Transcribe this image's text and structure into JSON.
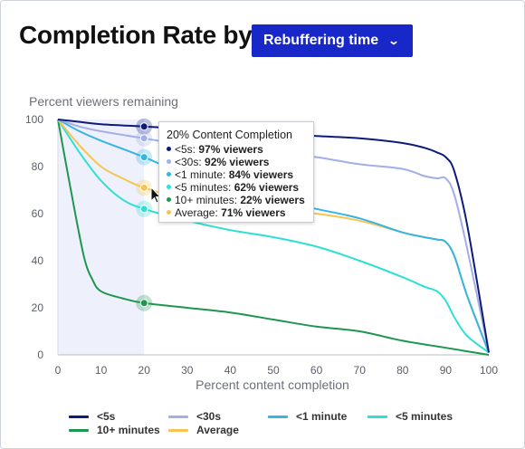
{
  "header": {
    "title": "Completion Rate by",
    "dropdown_label": "Rebuffering time"
  },
  "colors": {
    "s5": "#0d1b7a",
    "s30": "#a3aee6",
    "m1": "#36b4e3",
    "m5": "#2ee0d4",
    "m10": "#1f9650",
    "avg": "#f5c554",
    "highlight": "#eef0fb"
  },
  "chart_data": {
    "type": "line",
    "ylabel": "Percent viewers remaining",
    "xlabel": "Percent content completion",
    "xlim": [
      0,
      100
    ],
    "ylim": [
      0,
      100
    ],
    "xticks": [
      0,
      10,
      20,
      30,
      40,
      50,
      60,
      70,
      80,
      90,
      100
    ],
    "yticks": [
      0,
      20,
      40,
      60,
      80,
      100
    ],
    "highlight_range": [
      0,
      20
    ],
    "series": [
      {
        "name": "<5s",
        "key": "s5",
        "x": [
          0,
          5,
          10,
          20,
          30,
          40,
          50,
          60,
          70,
          80,
          85,
          88,
          90,
          92,
          95,
          100
        ],
        "y": [
          100,
          99,
          98,
          97,
          96,
          95,
          94,
          93,
          92,
          90,
          88,
          86,
          84,
          78,
          55,
          1
        ]
      },
      {
        "name": "<30s",
        "key": "s30",
        "x": [
          0,
          5,
          10,
          20,
          30,
          40,
          50,
          60,
          70,
          80,
          85,
          88,
          90,
          92,
          95,
          100
        ],
        "y": [
          100,
          97,
          95,
          92,
          89,
          87,
          86,
          84,
          81,
          79,
          76,
          75,
          75,
          68,
          45,
          1
        ]
      },
      {
        "name": "<1 minute",
        "key": "m1",
        "x": [
          0,
          5,
          10,
          20,
          30,
          40,
          50,
          60,
          70,
          80,
          85,
          88,
          90,
          92,
          95,
          100
        ],
        "y": [
          100,
          95,
          91,
          84,
          76,
          70,
          66,
          62,
          58,
          52,
          50,
          49,
          48,
          42,
          25,
          1
        ]
      },
      {
        "name": "<5 minutes",
        "key": "m5",
        "x": [
          0,
          5,
          10,
          15,
          20,
          30,
          40,
          50,
          60,
          70,
          80,
          85,
          88,
          90,
          92,
          95,
          100
        ],
        "y": [
          100,
          86,
          74,
          66,
          62,
          57,
          53,
          50,
          46,
          40,
          33,
          29,
          27,
          23,
          16,
          8,
          1
        ]
      },
      {
        "name": "10+ minutes",
        "key": "m10",
        "x": [
          0,
          3,
          6,
          8,
          10,
          15,
          20,
          30,
          40,
          50,
          60,
          70,
          80,
          90,
          100
        ],
        "y": [
          100,
          70,
          42,
          32,
          27,
          24,
          22,
          20,
          18,
          15,
          12,
          10,
          6,
          3,
          0
        ]
      },
      {
        "name": "Average",
        "key": "avg",
        "x": [
          0,
          5,
          10,
          15,
          20,
          30,
          40,
          50,
          60,
          70,
          80,
          85,
          88,
          90,
          92,
          95,
          100
        ],
        "y": [
          100,
          89,
          80,
          75,
          71,
          66,
          64,
          62,
          60,
          57,
          52,
          50,
          49,
          48,
          42,
          25,
          1
        ]
      }
    ],
    "tooltip": {
      "title": "20% Content Completion",
      "x": 20,
      "items": [
        {
          "key": "s5",
          "label": "<5s: ",
          "value": "97% viewers",
          "y": 97
        },
        {
          "key": "s30",
          "label": "<30s: ",
          "value": "92% viewers",
          "y": 92
        },
        {
          "key": "m1",
          "label": "<1 minute: ",
          "value": "84% viewers",
          "y": 84
        },
        {
          "key": "m5",
          "label": "<5 minutes: ",
          "value": "62% viewers",
          "y": 62
        },
        {
          "key": "m10",
          "label": "10+ minutes: ",
          "value": "22% viewers",
          "y": 22
        },
        {
          "key": "avg",
          "label": "Average: ",
          "value": "71% viewers",
          "y": 71
        }
      ]
    },
    "legend": [
      {
        "key": "s5",
        "label": "<5s"
      },
      {
        "key": "s30",
        "label": "<30s"
      },
      {
        "key": "m1",
        "label": "<1 minute"
      },
      {
        "key": "m5",
        "label": "<5 minutes"
      },
      {
        "key": "m10",
        "label": "10+ minutes"
      },
      {
        "key": "avg",
        "label": "Average"
      }
    ]
  }
}
